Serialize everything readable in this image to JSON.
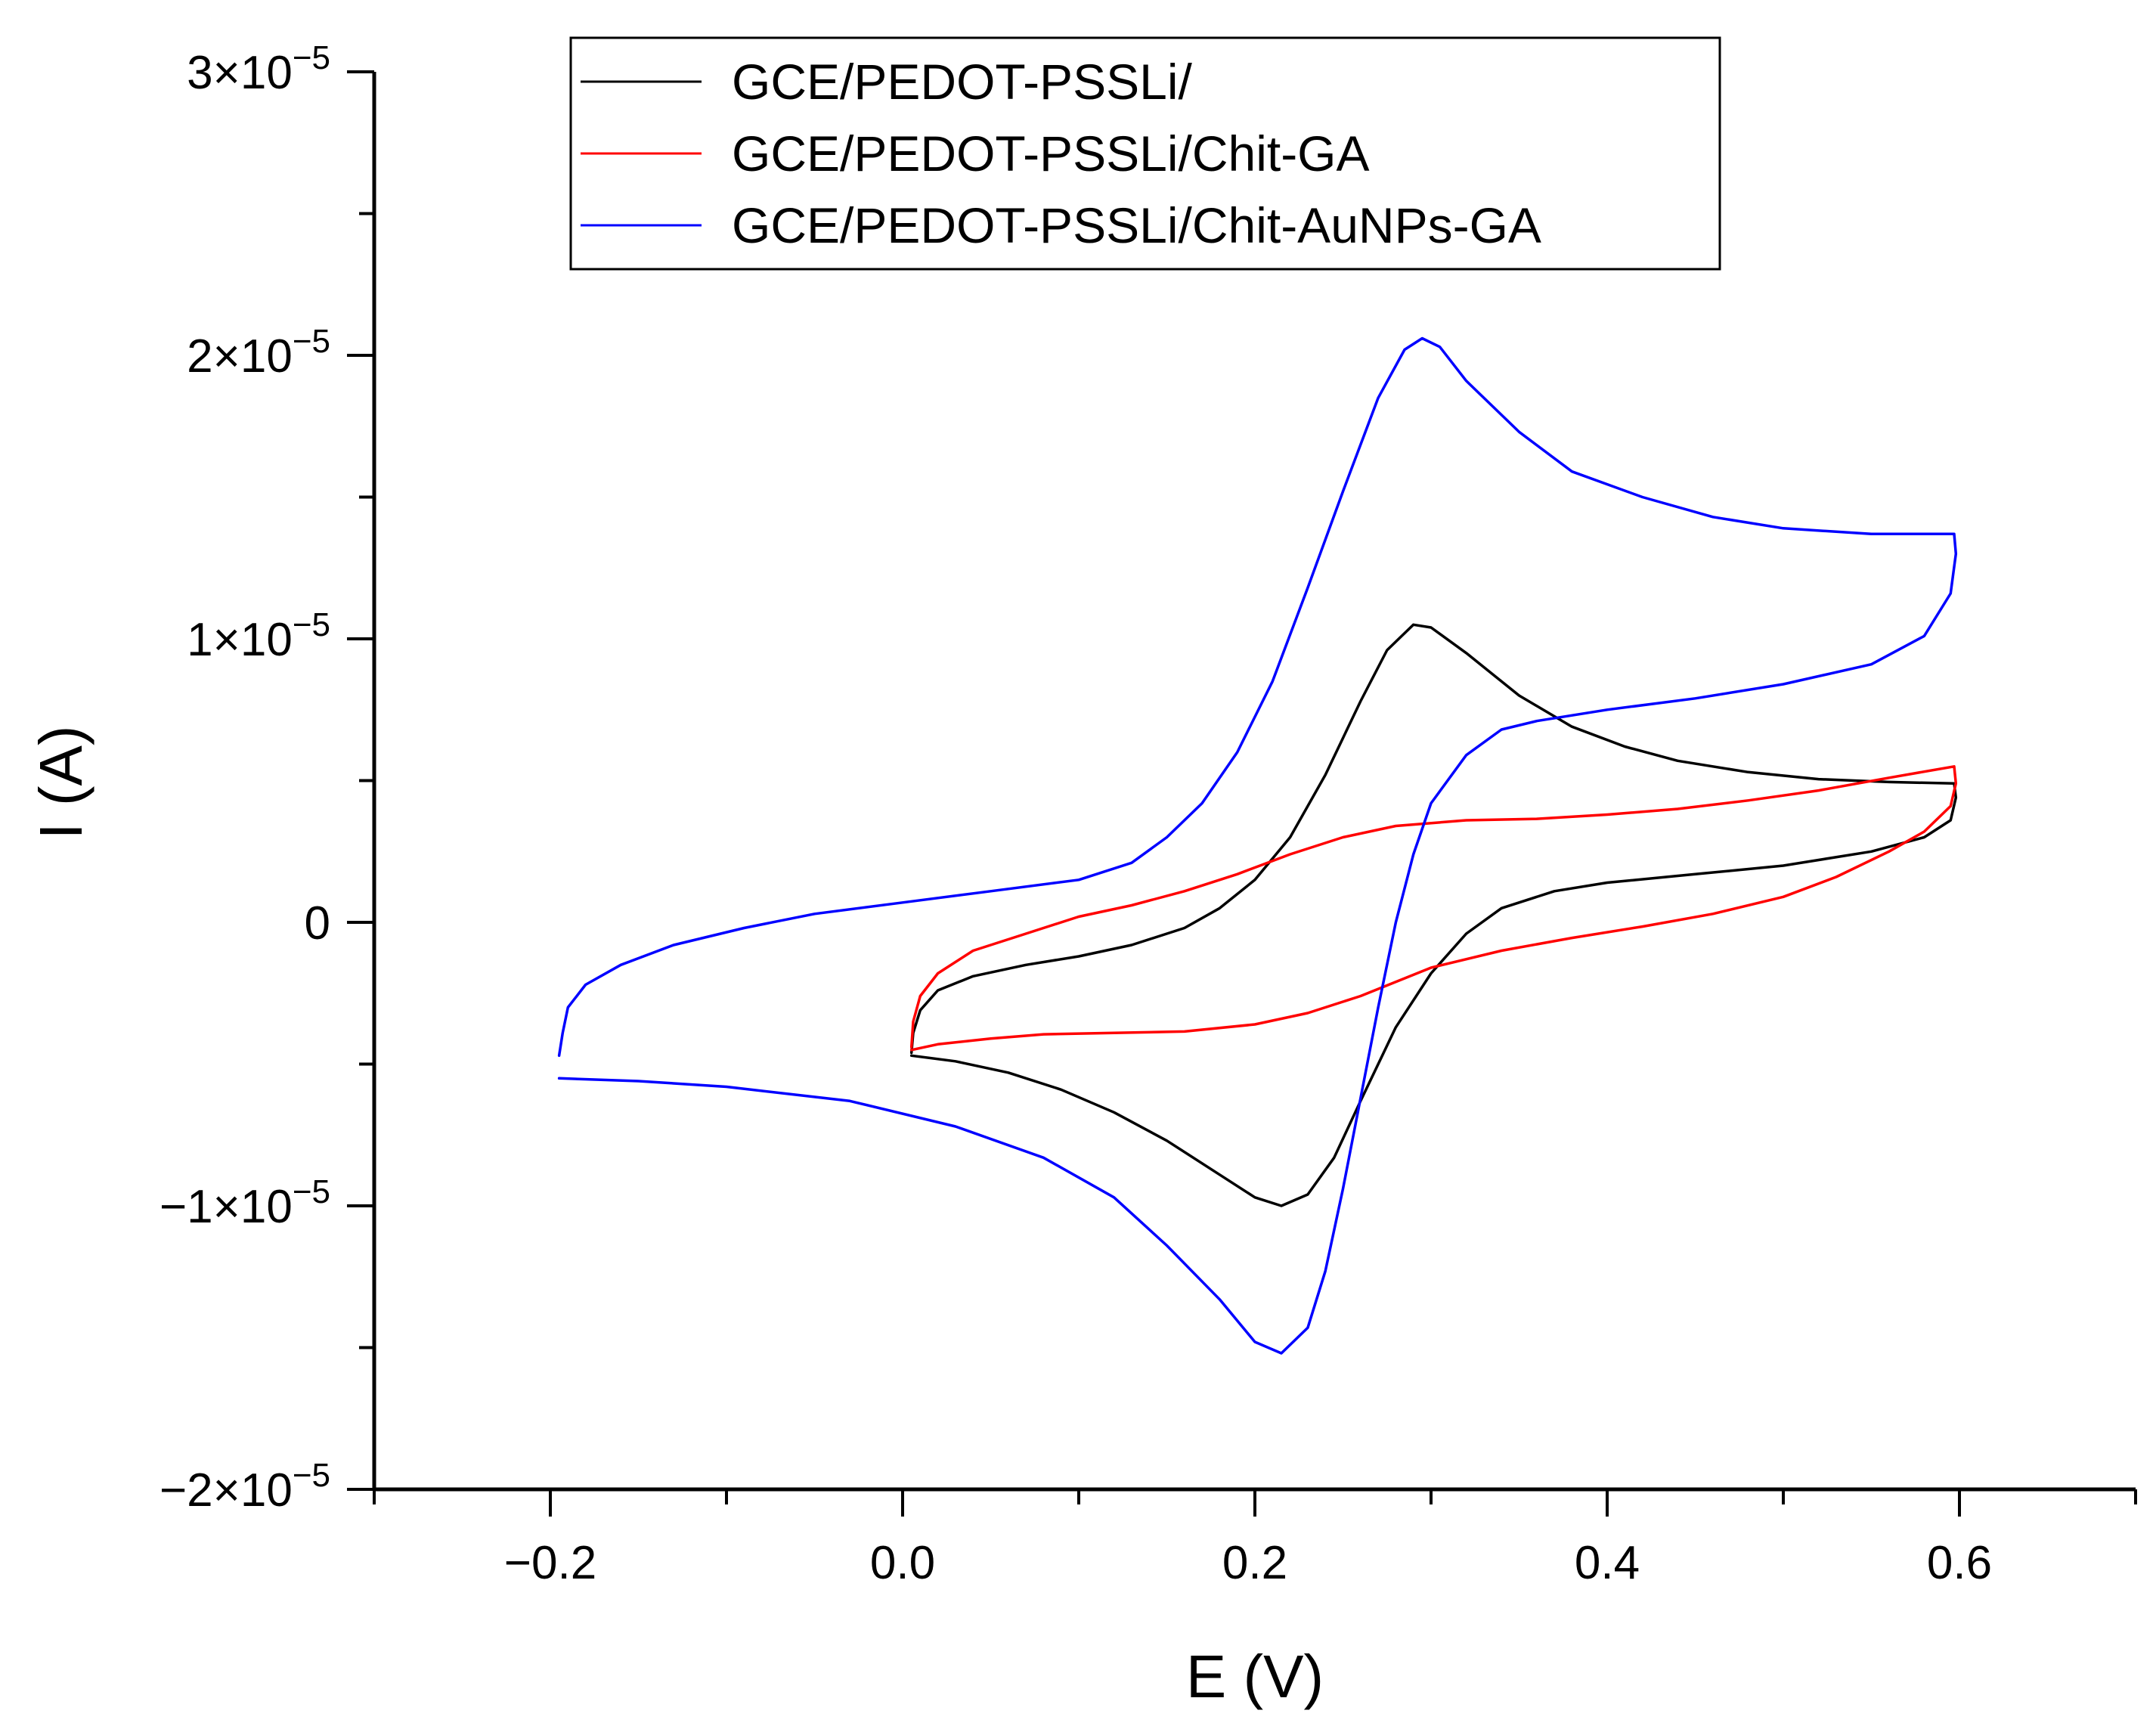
{
  "chart_data": {
    "type": "line",
    "title": "",
    "xlabel": "E (V)",
    "ylabel": "I (A)",
    "xlim": [
      -0.3,
      0.7
    ],
    "ylim": [
      -2e-05,
      3e-05
    ],
    "grid": false,
    "legend_position": "top",
    "x_ticks": [
      {
        "value": -0.2,
        "label": "−0.2"
      },
      {
        "value": 0.0,
        "label": "0.0"
      },
      {
        "value": 0.2,
        "label": "0.2"
      },
      {
        "value": 0.4,
        "label": "0.4"
      },
      {
        "value": 0.6,
        "label": "0.6"
      }
    ],
    "y_ticks": [
      {
        "value": -2e-05,
        "mantissa": "−2×10",
        "exponent": "−5"
      },
      {
        "value": -1e-05,
        "mantissa": "−1×10",
        "exponent": "−5"
      },
      {
        "value": 0,
        "mantissa": "0",
        "exponent": ""
      },
      {
        "value": 1e-05,
        "mantissa": "1×10",
        "exponent": "−5"
      },
      {
        "value": 2e-05,
        "mantissa": "2×10",
        "exponent": "−5"
      },
      {
        "value": 3e-05,
        "mantissa": "3×10",
        "exponent": "−5"
      }
    ],
    "series": [
      {
        "name": "GCE/PEDOT-PSSLi/",
        "color": "#000000",
        "points": [
          [
            0.005,
            -4.6e-06
          ],
          [
            0.006,
            -3.9e-06
          ],
          [
            0.01,
            -3.1e-06
          ],
          [
            0.02,
            -2.4e-06
          ],
          [
            0.04,
            -1.9e-06
          ],
          [
            0.07,
            -1.5e-06
          ],
          [
            0.1,
            -1.2e-06
          ],
          [
            0.13,
            -8e-07
          ],
          [
            0.16,
            -2e-07
          ],
          [
            0.18,
            5e-07
          ],
          [
            0.2,
            1.5e-06
          ],
          [
            0.22,
            3e-06
          ],
          [
            0.24,
            5.2e-06
          ],
          [
            0.26,
            7.8e-06
          ],
          [
            0.275,
            9.6e-06
          ],
          [
            0.29,
            1.05e-05
          ],
          [
            0.3,
            1.04e-05
          ],
          [
            0.32,
            9.5e-06
          ],
          [
            0.35,
            8e-06
          ],
          [
            0.38,
            6.9e-06
          ],
          [
            0.41,
            6.2e-06
          ],
          [
            0.44,
            5.7e-06
          ],
          [
            0.48,
            5.3e-06
          ],
          [
            0.52,
            5.05e-06
          ],
          [
            0.56,
            4.95e-06
          ],
          [
            0.597,
            4.9e-06
          ],
          [
            0.598,
            4.4e-06
          ],
          [
            0.595,
            3.6e-06
          ],
          [
            0.58,
            3e-06
          ],
          [
            0.55,
            2.5e-06
          ],
          [
            0.5,
            2e-06
          ],
          [
            0.45,
            1.7e-06
          ],
          [
            0.4,
            1.4e-06
          ],
          [
            0.37,
            1.1e-06
          ],
          [
            0.34,
            5e-07
          ],
          [
            0.32,
            -4e-07
          ],
          [
            0.3,
            -1.8e-06
          ],
          [
            0.28,
            -3.7e-06
          ],
          [
            0.26,
            -6.3e-06
          ],
          [
            0.245,
            -8.3e-06
          ],
          [
            0.23,
            -9.6e-06
          ],
          [
            0.215,
            -1e-05
          ],
          [
            0.2,
            -9.7e-06
          ],
          [
            0.18,
            -8.9e-06
          ],
          [
            0.15,
            -7.7e-06
          ],
          [
            0.12,
            -6.7e-06
          ],
          [
            0.09,
            -5.9e-06
          ],
          [
            0.06,
            -5.3e-06
          ],
          [
            0.03,
            -4.9e-06
          ],
          [
            0.005,
            -4.7e-06
          ]
        ]
      },
      {
        "name": "GCE/PEDOT-PSSLi/Chit-GA",
        "color": "#ff0000",
        "points": [
          [
            0.005,
            -4.4e-06
          ],
          [
            0.006,
            -3.5e-06
          ],
          [
            0.01,
            -2.6e-06
          ],
          [
            0.02,
            -1.8e-06
          ],
          [
            0.04,
            -1e-06
          ],
          [
            0.07,
            -4e-07
          ],
          [
            0.1,
            2e-07
          ],
          [
            0.13,
            6e-07
          ],
          [
            0.16,
            1.1e-06
          ],
          [
            0.19,
            1.7e-06
          ],
          [
            0.22,
            2.4e-06
          ],
          [
            0.25,
            3e-06
          ],
          [
            0.28,
            3.4e-06
          ],
          [
            0.32,
            3.6e-06
          ],
          [
            0.36,
            3.65e-06
          ],
          [
            0.4,
            3.8e-06
          ],
          [
            0.44,
            4e-06
          ],
          [
            0.48,
            4.3e-06
          ],
          [
            0.52,
            4.65e-06
          ],
          [
            0.56,
            5.1e-06
          ],
          [
            0.597,
            5.5e-06
          ],
          [
            0.598,
            4.9e-06
          ],
          [
            0.595,
            4.1e-06
          ],
          [
            0.58,
            3.2e-06
          ],
          [
            0.56,
            2.5e-06
          ],
          [
            0.53,
            1.6e-06
          ],
          [
            0.5,
            9e-07
          ],
          [
            0.46,
            3e-07
          ],
          [
            0.42,
            -1.5e-07
          ],
          [
            0.38,
            -5.5e-07
          ],
          [
            0.34,
            -1e-06
          ],
          [
            0.3,
            -1.6e-06
          ],
          [
            0.26,
            -2.6e-06
          ],
          [
            0.23,
            -3.2e-06
          ],
          [
            0.2,
            -3.6e-06
          ],
          [
            0.16,
            -3.85e-06
          ],
          [
            0.12,
            -3.9e-06
          ],
          [
            0.08,
            -3.95e-06
          ],
          [
            0.05,
            -4.1e-06
          ],
          [
            0.02,
            -4.3e-06
          ],
          [
            0.005,
            -4.5e-06
          ]
        ]
      },
      {
        "name": "GCE/PEDOT-PSSLi/Chit-AuNPs-GA",
        "color": "#0000ff",
        "points": [
          [
            -0.195,
            -4.7e-06
          ],
          [
            -0.193,
            -3.9e-06
          ],
          [
            -0.19,
            -3e-06
          ],
          [
            -0.18,
            -2.2e-06
          ],
          [
            -0.16,
            -1.5e-06
          ],
          [
            -0.13,
            -8e-07
          ],
          [
            -0.09,
            -2e-07
          ],
          [
            -0.05,
            3e-07
          ],
          [
            0.0,
            7e-07
          ],
          [
            0.05,
            1.1e-06
          ],
          [
            0.1,
            1.5e-06
          ],
          [
            0.13,
            2.1e-06
          ],
          [
            0.15,
            3e-06
          ],
          [
            0.17,
            4.2e-06
          ],
          [
            0.19,
            6e-06
          ],
          [
            0.21,
            8.5e-06
          ],
          [
            0.23,
            1.18e-05
          ],
          [
            0.25,
            1.52e-05
          ],
          [
            0.27,
            1.85e-05
          ],
          [
            0.285,
            2.02e-05
          ],
          [
            0.295,
            2.06e-05
          ],
          [
            0.305,
            2.03e-05
          ],
          [
            0.32,
            1.91e-05
          ],
          [
            0.35,
            1.73e-05
          ],
          [
            0.38,
            1.59e-05
          ],
          [
            0.42,
            1.5e-05
          ],
          [
            0.46,
            1.43e-05
          ],
          [
            0.5,
            1.39e-05
          ],
          [
            0.55,
            1.37e-05
          ],
          [
            0.597,
            1.37e-05
          ],
          [
            0.598,
            1.3e-05
          ],
          [
            0.595,
            1.16e-05
          ],
          [
            0.58,
            1.01e-05
          ],
          [
            0.55,
            9.1e-06
          ],
          [
            0.5,
            8.4e-06
          ],
          [
            0.45,
            7.9e-06
          ],
          [
            0.4,
            7.5e-06
          ],
          [
            0.36,
            7.1e-06
          ],
          [
            0.34,
            6.8e-06
          ],
          [
            0.32,
            5.9e-06
          ],
          [
            0.3,
            4.2e-06
          ],
          [
            0.29,
            2.4e-06
          ],
          [
            0.28,
            0.0
          ],
          [
            0.27,
            -3e-06
          ],
          [
            0.26,
            -6.2e-06
          ],
          [
            0.25,
            -9.4e-06
          ],
          [
            0.24,
            -1.23e-05
          ],
          [
            0.23,
            -1.43e-05
          ],
          [
            0.215,
            -1.52e-05
          ],
          [
            0.2,
            -1.48e-05
          ],
          [
            0.18,
            -1.33e-05
          ],
          [
            0.15,
            -1.14e-05
          ],
          [
            0.12,
            -9.7e-06
          ],
          [
            0.08,
            -8.3e-06
          ],
          [
            0.03,
            -7.2e-06
          ],
          [
            -0.03,
            -6.3e-06
          ],
          [
            -0.1,
            -5.8e-06
          ],
          [
            -0.15,
            -5.6e-06
          ],
          [
            -0.195,
            -5.5e-06
          ]
        ]
      }
    ]
  }
}
